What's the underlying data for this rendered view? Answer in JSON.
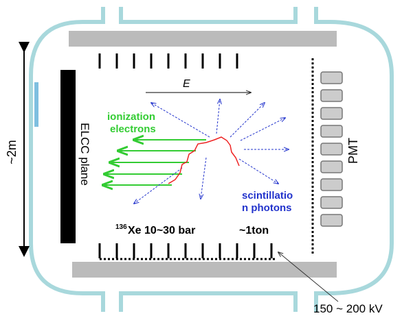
{
  "labels": {
    "field": "E",
    "ionization": [
      "ionization",
      "electrons"
    ],
    "elcc": "ELCC plane",
    "height": "~2m",
    "pmt": "PMT",
    "scintillation": [
      "scintillatio",
      "n photons"
    ],
    "isotope": "136",
    "gas": "Xe 10~30 bar",
    "mass": "~1ton",
    "voltage": "150 ~ 200 kV"
  }
}
